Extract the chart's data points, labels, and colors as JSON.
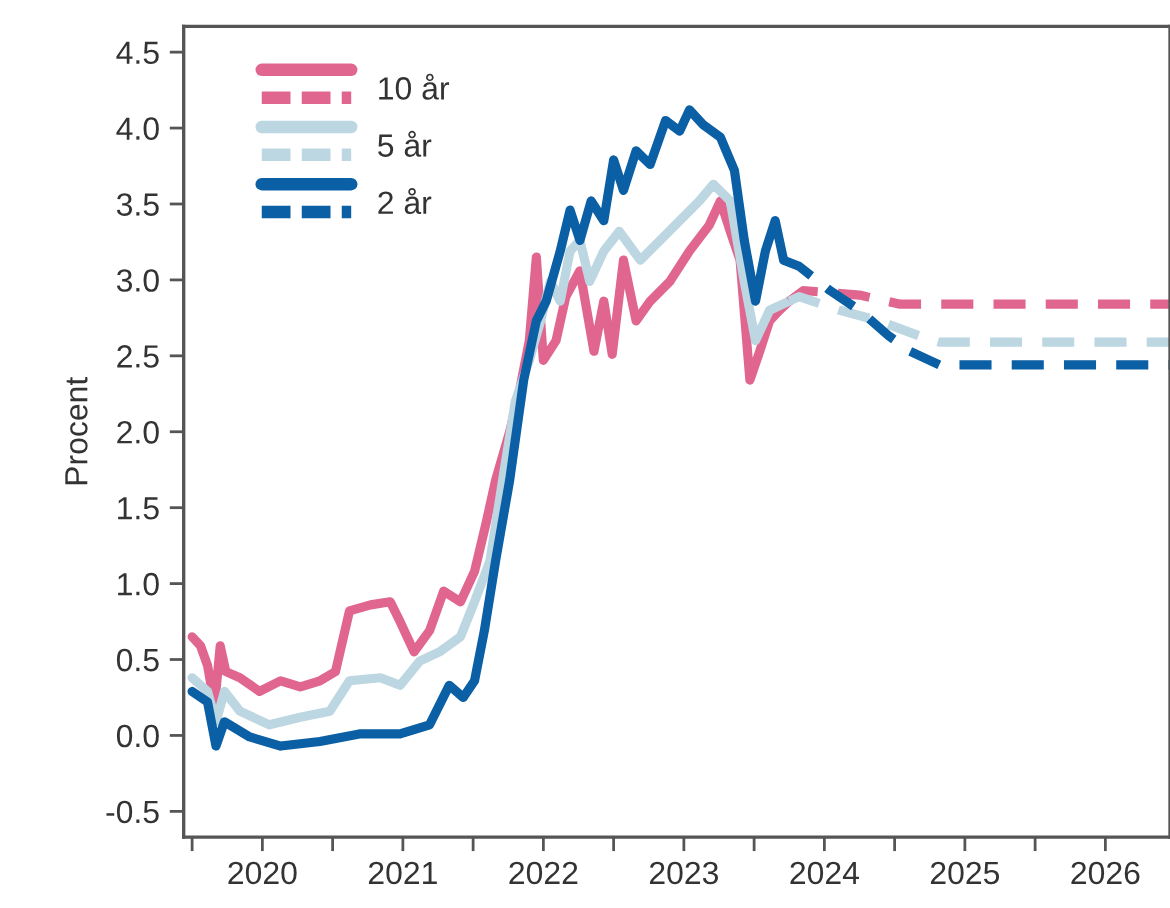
{
  "chart_data": {
    "type": "line",
    "ylabel": "Procent",
    "legend": "top left",
    "grid": false,
    "xlim": [
      2019.94,
      2026.96
    ],
    "ylim": [
      -0.67,
      4.67
    ],
    "yticks": [
      -0.5,
      {
        "value": 0,
        "label": "0.0"
      },
      0.5,
      {
        "value": 1,
        "label": "1.0"
      },
      1.5,
      {
        "value": 2,
        "label": "2.0"
      },
      2.5,
      {
        "value": 3,
        "label": "3.0"
      },
      3.5,
      {
        "value": 4,
        "label": "4.0"
      },
      4.5
    ],
    "xticks": [
      {
        "value": 2020,
        "label": null
      },
      {
        "value": 2020.5,
        "label": "2020"
      },
      {
        "value": 2021,
        "label": null
      },
      {
        "value": 2021.5,
        "label": "2021"
      },
      {
        "value": 2022,
        "label": null
      },
      {
        "value": 2022.5,
        "label": "2022"
      },
      {
        "value": 2023,
        "label": null
      },
      {
        "value": 2023.5,
        "label": "2023"
      },
      {
        "value": 2024,
        "label": null
      },
      {
        "value": 2024.5,
        "label": "2024"
      },
      {
        "value": 2025,
        "label": null
      },
      {
        "value": 2025.5,
        "label": "2025"
      },
      {
        "value": 2026,
        "label": null
      },
      {
        "value": 2026.5,
        "label": "2026"
      }
    ],
    "series": [
      {
        "name": "10 år",
        "color": "#e06690",
        "line_style": "solid",
        "x": [
          2020.0,
          2020.06,
          2020.11,
          2020.16,
          2020.2,
          2020.24,
          2020.34,
          2020.48,
          2020.63,
          2020.77,
          2020.91,
          2021.02,
          2021.12,
          2021.27,
          2021.41,
          2021.48,
          2021.58,
          2021.69,
          2021.79,
          2021.91,
          2022.01,
          2022.09,
          2022.16,
          2022.26,
          2022.33,
          2022.4,
          2022.45,
          2022.5,
          2022.59,
          2022.66,
          2022.76,
          2022.86,
          2022.93,
          2022.99,
          2023.07,
          2023.16,
          2023.26,
          2023.4,
          2023.54,
          2023.68,
          2023.76,
          2023.83,
          2023.9,
          2023.97,
          2024.04,
          2024.11,
          2024.18,
          2024.25
        ],
        "values": [
          0.65,
          0.59,
          0.46,
          0.2,
          0.59,
          0.42,
          0.38,
          0.29,
          0.36,
          0.32,
          0.36,
          0.42,
          0.82,
          0.86,
          0.88,
          0.75,
          0.55,
          0.69,
          0.95,
          0.88,
          1.08,
          1.39,
          1.68,
          2.0,
          2.27,
          2.6,
          3.15,
          2.47,
          2.6,
          2.89,
          3.06,
          2.53,
          2.86,
          2.51,
          3.13,
          2.73,
          2.86,
          2.99,
          3.19,
          3.36,
          3.52,
          3.32,
          3.13,
          2.34,
          2.53,
          2.73,
          2.8,
          2.86
        ]
      },
      {
        "name": "5 år",
        "color": "#bcd6e2",
        "line_style": "solid",
        "x": [
          2020.0,
          2020.11,
          2020.17,
          2020.23,
          2020.34,
          2020.55,
          2020.77,
          2020.98,
          2021.12,
          2021.34,
          2021.48,
          2021.62,
          2021.76,
          2021.91,
          2022.01,
          2022.12,
          2022.22,
          2022.3,
          2022.4,
          2022.48,
          2022.55,
          2022.62,
          2022.69,
          2022.76,
          2022.83,
          2022.93,
          2023.04,
          2023.19,
          2023.33,
          2023.47,
          2023.61,
          2023.71,
          2023.83,
          2023.93,
          2024.01,
          2024.11,
          2024.25
        ],
        "values": [
          0.38,
          0.29,
          0.09,
          0.29,
          0.16,
          0.07,
          0.12,
          0.16,
          0.36,
          0.38,
          0.33,
          0.49,
          0.55,
          0.65,
          0.88,
          1.15,
          1.74,
          2.2,
          2.47,
          2.73,
          2.99,
          2.86,
          3.19,
          3.26,
          2.99,
          3.19,
          3.32,
          3.13,
          3.26,
          3.39,
          3.52,
          3.63,
          3.52,
          2.99,
          2.6,
          2.8,
          2.86
        ]
      },
      {
        "name": "2 år",
        "color": "#0b5fa5",
        "line_style": "solid",
        "x": [
          2020.0,
          2020.11,
          2020.17,
          2020.23,
          2020.41,
          2020.63,
          2020.91,
          2021.19,
          2021.48,
          2021.69,
          2021.83,
          2021.93,
          2022.01,
          2022.08,
          2022.16,
          2022.26,
          2022.36,
          2022.45,
          2022.52,
          2022.62,
          2022.69,
          2022.76,
          2022.84,
          2022.93,
          2023.0,
          2023.07,
          2023.16,
          2023.26,
          2023.37,
          2023.47,
          2023.54,
          2023.64,
          2023.76,
          2023.86,
          2023.93,
          2024.01,
          2024.08,
          2024.15,
          2024.21
        ],
        "values": [
          0.29,
          0.22,
          -0.07,
          0.09,
          -0.01,
          -0.07,
          -0.04,
          0.01,
          0.01,
          0.07,
          0.33,
          0.25,
          0.36,
          0.69,
          1.15,
          1.68,
          2.34,
          2.73,
          2.86,
          3.19,
          3.46,
          3.26,
          3.52,
          3.39,
          3.79,
          3.59,
          3.85,
          3.76,
          4.05,
          3.98,
          4.12,
          4.02,
          3.94,
          3.72,
          3.26,
          2.86,
          3.19,
          3.39,
          3.13
        ]
      },
      {
        "color": "#e06690",
        "line_style": "dashed",
        "x": [
          2024.25,
          2024.35,
          2024.75,
          2025.04,
          2026.96
        ],
        "values": [
          2.86,
          2.93,
          2.9,
          2.84,
          2.84
        ]
      },
      {
        "color": "#bcd6e2",
        "line_style": "dashed",
        "x": [
          2024.25,
          2024.32,
          2024.61,
          2024.89,
          2025.18,
          2025.32,
          2026.96
        ],
        "values": [
          2.86,
          2.89,
          2.8,
          2.73,
          2.63,
          2.59,
          2.59
        ]
      },
      {
        "color": "#0b5fa5",
        "line_style": "dashed",
        "x": [
          2024.21,
          2024.32,
          2024.54,
          2024.75,
          2024.96,
          2025.11,
          2025.32,
          2026.96
        ],
        "values": [
          3.13,
          3.09,
          2.93,
          2.8,
          2.63,
          2.53,
          2.44,
          2.44
        ]
      }
    ]
  }
}
